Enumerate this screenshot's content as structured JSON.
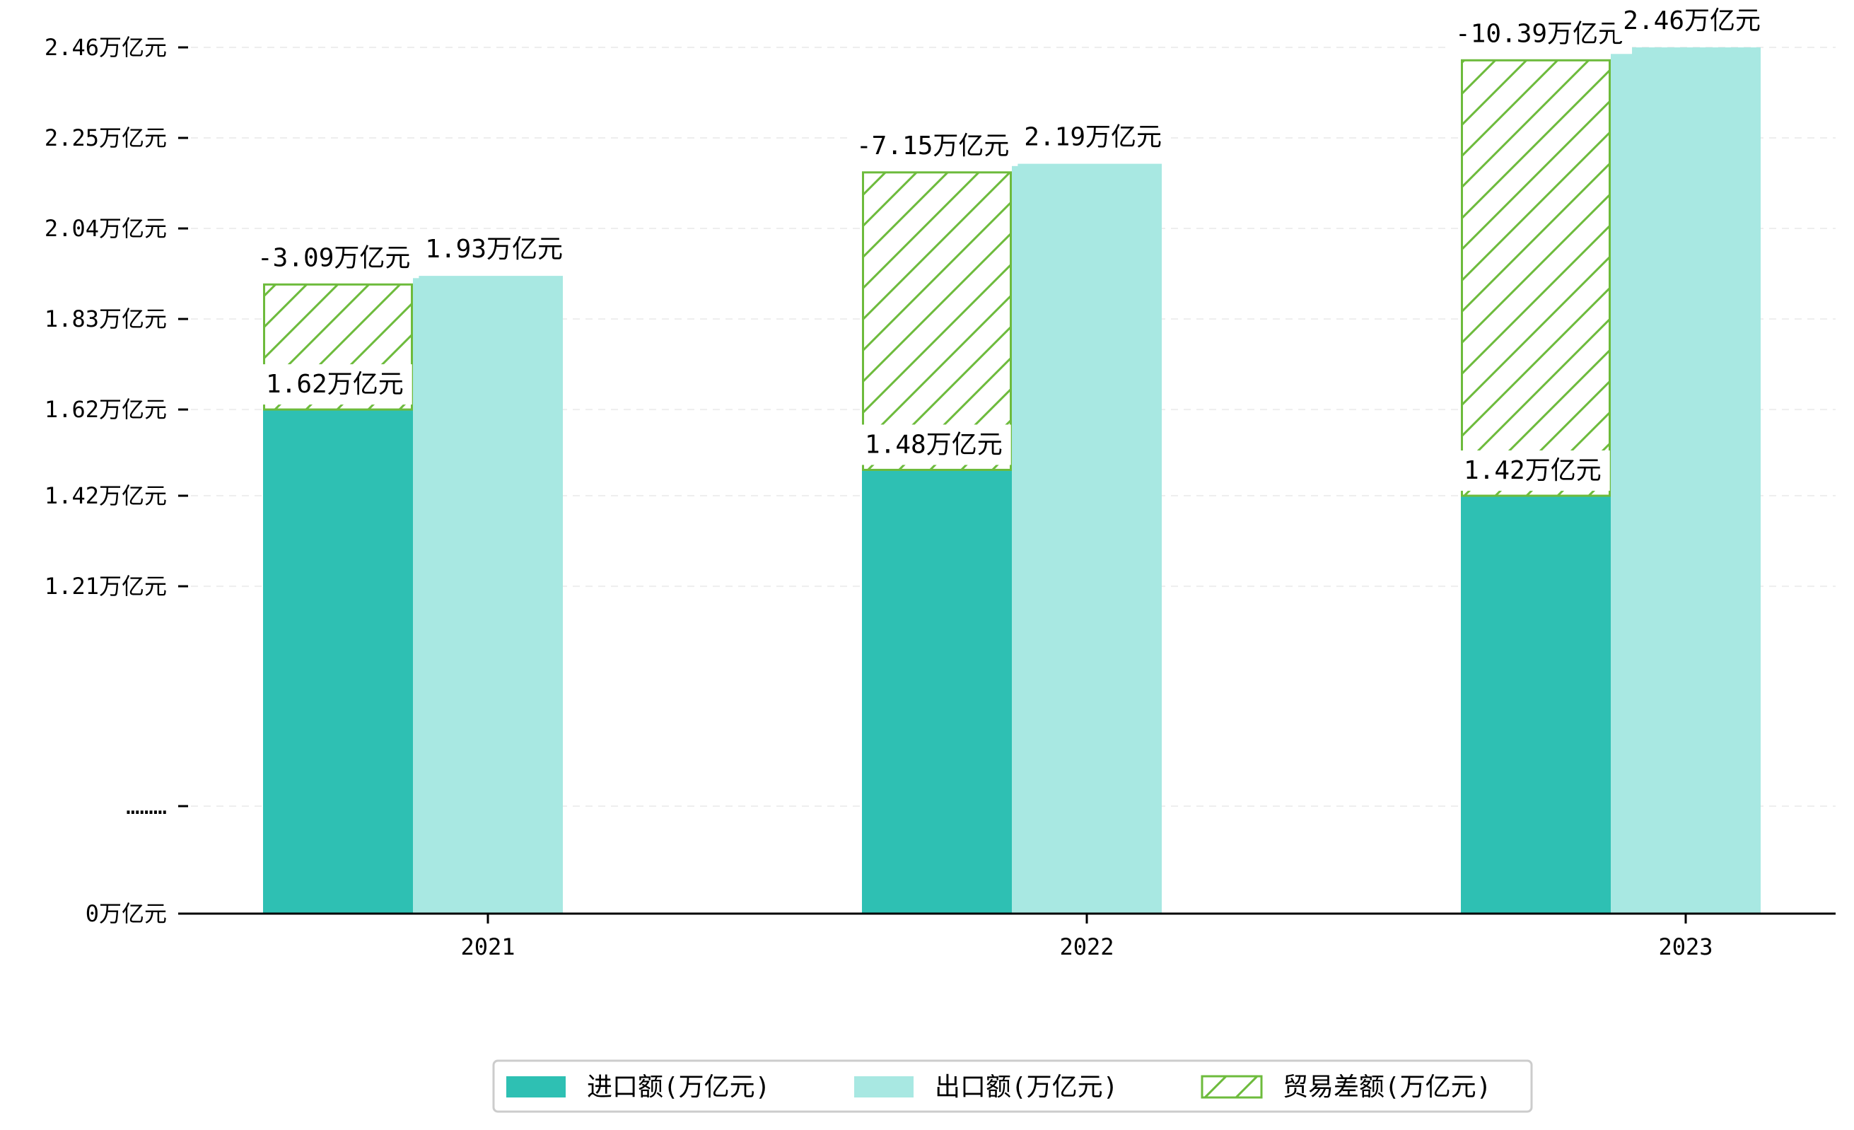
{
  "chart_data": {
    "type": "bar",
    "title": "",
    "xlabel": "",
    "ylabel": "",
    "categories": [
      "2021",
      "2022",
      "2023"
    ],
    "series": [
      {
        "name": "进口额(万亿元)",
        "values": [
          1.62,
          1.48,
          1.42
        ],
        "labels": [
          "1.62万亿元",
          "1.48万亿元",
          "1.42万亿元"
        ],
        "color": "#2ec0b3"
      },
      {
        "name": "出口额(万亿元)",
        "values": [
          1.93,
          2.19,
          2.46
        ],
        "labels": [
          "1.93万亿元",
          "2.19万亿元",
          "2.46万亿元"
        ],
        "color": "#a8e8e2"
      },
      {
        "name": "贸易差额(万亿元)",
        "values": [
          -3.09,
          -7.15,
          -10.39
        ],
        "labels": [
          "-3.09万亿元",
          "-7.15万亿元",
          "-10.39万亿元"
        ],
        "stack_bottom": [
          1.62,
          1.48,
          1.42
        ],
        "stack_top": [
          1.91,
          2.17,
          2.43
        ],
        "color": "#6dbb3c",
        "pattern": "hatch"
      }
    ],
    "y_ticks": [
      {
        "value": 0,
        "label": "0万亿元"
      },
      {
        "value": 0.7,
        "label": "………"
      },
      {
        "value": 1.21,
        "label": "1.21万亿元"
      },
      {
        "value": 1.42,
        "label": "1.42万亿元"
      },
      {
        "value": 1.62,
        "label": "1.62万亿元"
      },
      {
        "value": 1.83,
        "label": "1.83万亿元"
      },
      {
        "value": 2.04,
        "label": "2.04万亿元"
      },
      {
        "value": 2.25,
        "label": "2.25万亿元"
      },
      {
        "value": 2.46,
        "label": "2.46万亿元"
      }
    ],
    "grid": true,
    "legend_position": "bottom-center"
  }
}
